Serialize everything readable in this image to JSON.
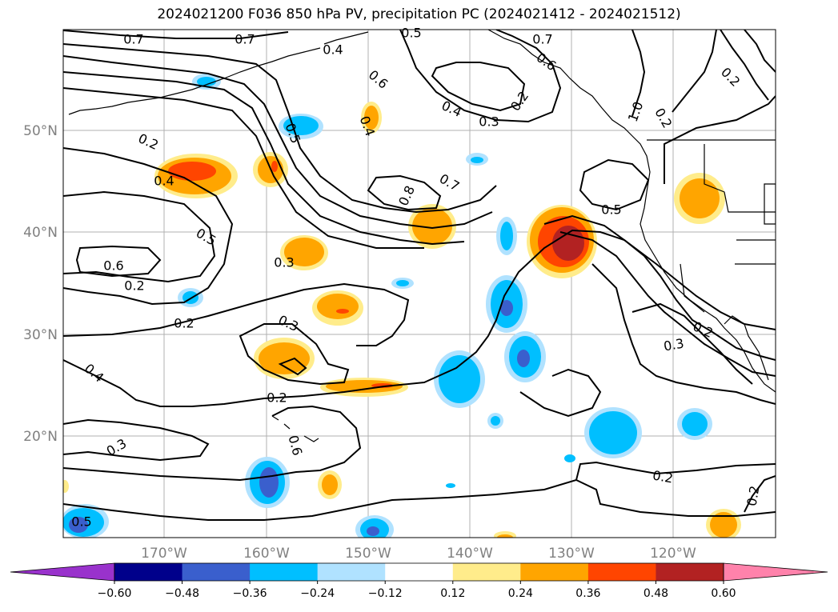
{
  "title": "2024021200 F036 850 hPa PV, precipitation PC (2024021412 - 2024021512)",
  "map": {
    "lat_labels": [
      "50°N",
      "40°N",
      "30°N",
      "20°N"
    ],
    "lon_labels": [
      "170°W",
      "160°W",
      "150°W",
      "140°W",
      "130°W",
      "120°W"
    ],
    "contour_labels": [
      "0.7",
      "0.7",
      "0.5",
      "0.7",
      "0.6",
      "0.6",
      "0.4",
      "0.3",
      "0.2",
      "0.2",
      "0.4",
      "0.5",
      "0.5",
      "0.4",
      "0.2",
      "0.4",
      "0.7",
      "0.8",
      "1.0",
      "0.5",
      "0.6",
      "0.2",
      "0.3",
      "0.2",
      "0.3",
      "0.4",
      "0.2",
      "0.3",
      "0.6",
      "0.5",
      "0.2",
      "0.3",
      "0.2",
      "0.2",
      "0.2"
    ]
  },
  "colorbar": {
    "colors": [
      "#9932CC",
      "#00008B",
      "#3A5FCD",
      "#00BFFF",
      "#B0E2FF",
      "#FFFFFF",
      "#FFEC8B",
      "#FFA500",
      "#FF4500",
      "#B22222",
      "#FF82AB"
    ],
    "tick_labels": [
      "−0.60",
      "−0.48",
      "−0.36",
      "−0.24",
      "−0.12",
      "0.12",
      "0.24",
      "0.36",
      "0.48",
      "0.60"
    ]
  },
  "palette": {
    "grid": "#b0b0b0",
    "contour": "#000000",
    "coast": "#000000"
  }
}
